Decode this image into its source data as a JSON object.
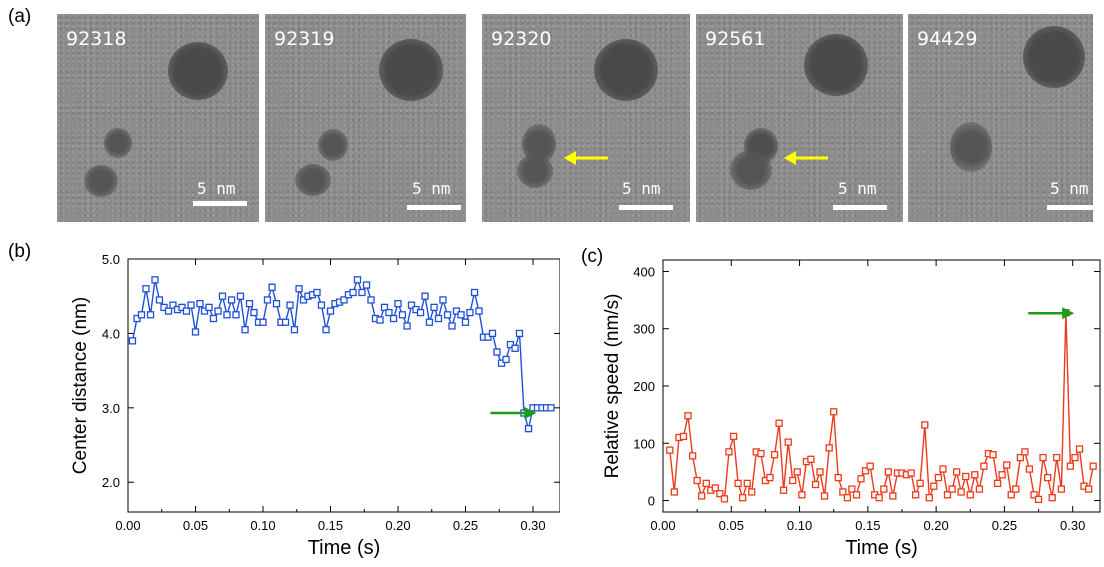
{
  "panels": {
    "a": "(a)",
    "b": "(b)",
    "c": "(c)"
  },
  "frames": [
    {
      "id": "92318",
      "scale_label": "5 nm",
      "has_arrow": false
    },
    {
      "id": "92319",
      "scale_label": "5 nm",
      "has_arrow": false
    },
    {
      "id": "92320",
      "scale_label": "5 nm",
      "has_arrow": true
    },
    {
      "id": "92561",
      "scale_label": "5 nm",
      "has_arrow": true
    },
    {
      "id": "94429",
      "scale_label": "5 nm",
      "has_arrow": false
    }
  ],
  "colors": {
    "series_b": "#1f4fd8",
    "series_c": "#ee3a1a",
    "arrow_green": "#1c9a1c",
    "arrow_yellow": "#ffff00"
  },
  "chart_data": [
    {
      "type": "line",
      "xlabel": "Time (s)",
      "ylabel": "Center distance (nm)",
      "xlim": [
        0,
        0.32
      ],
      "ylim": [
        1.6,
        5.0
      ],
      "xticks": [
        "0.00",
        "0.05",
        "0.10",
        "0.15",
        "0.20",
        "0.25",
        "0.30"
      ],
      "yticks": [
        "2.0",
        "3.0",
        "4.0",
        "5.0"
      ],
      "grid": false,
      "annotation": {
        "type": "arrow",
        "color": "green",
        "x": 0.307,
        "y": 2.93
      },
      "x": [
        0.0033,
        0.0067,
        0.01,
        0.0133,
        0.0167,
        0.02,
        0.0233,
        0.0267,
        0.03,
        0.0333,
        0.0367,
        0.04,
        0.0433,
        0.0467,
        0.05,
        0.0533,
        0.0567,
        0.06,
        0.0633,
        0.0667,
        0.07,
        0.0733,
        0.0767,
        0.08,
        0.0833,
        0.0867,
        0.09,
        0.0933,
        0.0967,
        0.1,
        0.1033,
        0.1067,
        0.11,
        0.1133,
        0.1167,
        0.12,
        0.1233,
        0.1267,
        0.13,
        0.1333,
        0.1367,
        0.14,
        0.1433,
        0.1467,
        0.15,
        0.1533,
        0.1567,
        0.16,
        0.1633,
        0.1667,
        0.17,
        0.1733,
        0.1767,
        0.18,
        0.1833,
        0.1867,
        0.19,
        0.1933,
        0.1967,
        0.2,
        0.2033,
        0.2067,
        0.21,
        0.2133,
        0.2167,
        0.22,
        0.2233,
        0.2267,
        0.23,
        0.2333,
        0.2367,
        0.24,
        0.2433,
        0.2467,
        0.25,
        0.2533,
        0.2567,
        0.26,
        0.2633,
        0.2667,
        0.27,
        0.2733,
        0.2767,
        0.28,
        0.2833,
        0.2867,
        0.29,
        0.2933,
        0.2967,
        0.3,
        0.3033,
        0.3067,
        0.31,
        0.3133
      ],
      "y": [
        3.9,
        4.2,
        4.25,
        4.6,
        4.25,
        4.72,
        4.45,
        4.35,
        4.3,
        4.38,
        4.32,
        4.35,
        4.3,
        4.38,
        4.02,
        4.4,
        4.3,
        4.35,
        4.2,
        4.3,
        4.5,
        4.25,
        4.45,
        4.25,
        4.5,
        4.05,
        4.4,
        4.28,
        4.15,
        4.15,
        4.45,
        4.62,
        4.4,
        4.15,
        4.15,
        4.38,
        4.05,
        4.6,
        4.45,
        4.5,
        4.52,
        4.55,
        4.38,
        4.05,
        4.3,
        4.4,
        4.42,
        4.45,
        4.52,
        4.55,
        4.72,
        4.55,
        4.65,
        4.45,
        4.2,
        4.18,
        4.35,
        4.28,
        4.2,
        4.4,
        4.25,
        4.1,
        4.38,
        4.32,
        4.28,
        4.5,
        4.15,
        4.35,
        4.2,
        4.45,
        4.25,
        4.1,
        4.3,
        4.25,
        4.15,
        4.28,
        4.55,
        4.3,
        3.95,
        3.95,
        4.0,
        3.75,
        3.6,
        3.65,
        3.85,
        3.8,
        4.0,
        2.93,
        2.72,
        3.0,
        3.0,
        3.0,
        3.0,
        3.0
      ]
    },
    {
      "type": "line",
      "xlabel": "Time (s)",
      "ylabel": "Relative speed (nm/s)",
      "xlim": [
        0,
        0.32
      ],
      "ylim": [
        -20,
        420
      ],
      "xticks": [
        "0.00",
        "0.05",
        "0.10",
        "0.15",
        "0.20",
        "0.25",
        "0.30"
      ],
      "yticks": [
        "0",
        "100",
        "200",
        "300",
        "400"
      ],
      "grid": false,
      "annotation": {
        "type": "arrow",
        "color": "green",
        "x": 0.307,
        "y": 327
      },
      "x": [
        0.005,
        0.0083,
        0.0117,
        0.015,
        0.0183,
        0.0217,
        0.025,
        0.0283,
        0.0317,
        0.035,
        0.0383,
        0.0417,
        0.045,
        0.0483,
        0.0517,
        0.055,
        0.0583,
        0.0617,
        0.065,
        0.0683,
        0.0717,
        0.075,
        0.0783,
        0.0817,
        0.085,
        0.0883,
        0.0917,
        0.095,
        0.0983,
        0.1017,
        0.105,
        0.1083,
        0.1117,
        0.115,
        0.1183,
        0.1217,
        0.125,
        0.1283,
        0.1317,
        0.135,
        0.1383,
        0.1417,
        0.145,
        0.1483,
        0.1517,
        0.155,
        0.1583,
        0.1617,
        0.165,
        0.1683,
        0.1717,
        0.175,
        0.1783,
        0.1817,
        0.185,
        0.1883,
        0.1917,
        0.195,
        0.1983,
        0.2017,
        0.205,
        0.2083,
        0.2117,
        0.215,
        0.2183,
        0.2217,
        0.225,
        0.2283,
        0.2317,
        0.235,
        0.2383,
        0.2417,
        0.245,
        0.2483,
        0.2517,
        0.255,
        0.2583,
        0.2617,
        0.265,
        0.2683,
        0.2717,
        0.275,
        0.2783,
        0.2817,
        0.285,
        0.2883,
        0.2917,
        0.295,
        0.2983,
        0.3017,
        0.305,
        0.3083,
        0.3117,
        0.315
      ],
      "y": [
        88,
        15,
        110,
        112,
        148,
        78,
        35,
        8,
        30,
        18,
        22,
        12,
        3,
        85,
        112,
        30,
        5,
        30,
        15,
        85,
        82,
        35,
        40,
        80,
        135,
        18,
        102,
        35,
        50,
        10,
        68,
        72,
        28,
        50,
        8,
        92,
        155,
        40,
        15,
        5,
        20,
        10,
        38,
        52,
        60,
        10,
        5,
        20,
        50,
        8,
        48,
        48,
        45,
        48,
        10,
        30,
        132,
        5,
        25,
        40,
        55,
        10,
        20,
        50,
        15,
        42,
        10,
        45,
        20,
        60,
        82,
        80,
        30,
        45,
        62,
        10,
        20,
        75,
        85,
        55,
        10,
        2,
        75,
        40,
        5,
        75,
        20,
        328,
        60,
        75,
        90,
        25,
        20,
        60
      ]
    }
  ]
}
